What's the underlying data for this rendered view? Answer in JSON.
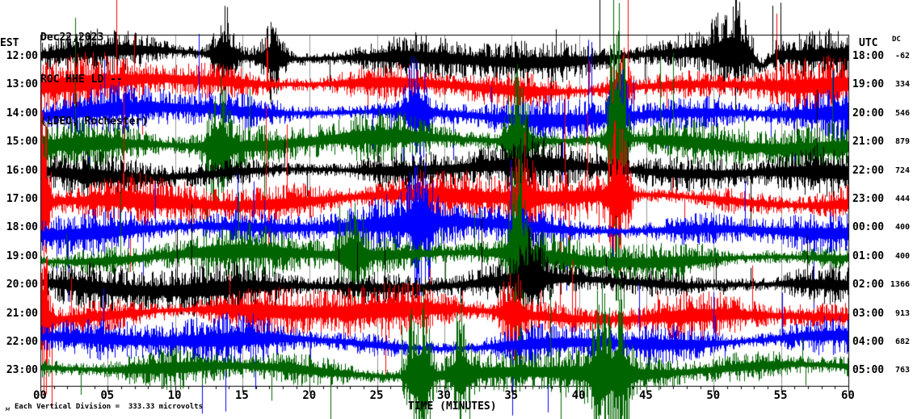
{
  "header": {
    "date": "Dec22,2023",
    "station_line": "ROC HHE LD --",
    "affiliation_line": "(LDEO, Rochester)"
  },
  "left_axis": {
    "label": "EST"
  },
  "right_axis": {
    "label": "UTC",
    "dc_label": "DC"
  },
  "x_axis": {
    "label": "TIME (MINUTES)",
    "tick_labels": [
      "00",
      "05",
      "10",
      "15",
      "20",
      "25",
      "30",
      "35",
      "40",
      "45",
      "50",
      "55",
      "60"
    ]
  },
  "footer": {
    "scale_note": "Each Vertical Division =  333.33 microvolts",
    "watermark": "м"
  },
  "chart_data": {
    "type": "line",
    "subtype": "helicorder-seismogram",
    "x_range_minutes": [
      0,
      60
    ],
    "minutes_total": 60,
    "vertical_division_microvolts": 333.33,
    "grid": {
      "vertical_major_every_minutes": 5,
      "minor_tick_every_minutes": 1,
      "color": "#999999"
    },
    "trace_color_cycle": [
      "#000000",
      "#ff0000",
      "#0000ff",
      "#006400"
    ],
    "rows": [
      {
        "est": "12:00",
        "utc": "18:00",
        "dc": -62,
        "color": "#000000",
        "seed": 101,
        "base": 13,
        "events": [
          {
            "m": 13.6,
            "a": 34
          },
          {
            "m": 17.2,
            "a": 26
          },
          {
            "m": 51.3,
            "a": 28,
            "w": 0.9
          },
          {
            "m": 53.6,
            "a": -8,
            "o": 14,
            "w": 0.5
          }
        ]
      },
      {
        "est": "13:00",
        "utc": "19:00",
        "dc": 334,
        "color": "#ff0000",
        "seed": 202,
        "base": 13,
        "events": [
          {
            "m": 43,
            "a": 28
          }
        ]
      },
      {
        "est": "14:00",
        "utc": "20:00",
        "dc": 546,
        "color": "#0000ff",
        "seed": 303,
        "base": 13,
        "events": [
          {
            "m": 27.9,
            "a": 38
          },
          {
            "m": 43,
            "a": 28
          }
        ]
      },
      {
        "est": "15:00",
        "utc": "21:00",
        "dc": 879,
        "color": "#006400",
        "seed": 404,
        "base": 14,
        "events": [
          {
            "m": 13.2,
            "a": 42
          },
          {
            "m": 35.4,
            "a": 50
          },
          {
            "m": 42.8,
            "a": 145,
            "w": 0.4
          }
        ]
      },
      {
        "est": "16:00",
        "utc": "22:00",
        "dc": 724,
        "color": "#000000",
        "seed": 505,
        "base": 13,
        "events": []
      },
      {
        "est": "17:00",
        "utc": "23:00",
        "dc": 444,
        "color": "#ff0000",
        "seed": 606,
        "base": 14,
        "events": [
          {
            "m": 0.2,
            "a": 95,
            "w": 0.3
          },
          {
            "m": 35.8,
            "a": 32
          },
          {
            "m": 42.9,
            "a": 55
          }
        ]
      },
      {
        "est": "18:00",
        "utc": "00:00",
        "dc": 400,
        "color": "#0000ff",
        "seed": 707,
        "base": 13,
        "events": [
          {
            "m": 28.2,
            "a": 45
          }
        ]
      },
      {
        "est": "19:00",
        "utc": "01:00",
        "dc": 400,
        "color": "#006400",
        "seed": 808,
        "base": 13,
        "events": [
          {
            "m": 23.2,
            "a": 38
          },
          {
            "m": 35.4,
            "a": 105,
            "w": 0.35
          }
        ]
      },
      {
        "est": "20:00",
        "utc": "02:00",
        "dc": 1366,
        "color": "#000000",
        "seed": 909,
        "base": 13,
        "events": [
          {
            "m": 36.5,
            "a": 32
          }
        ]
      },
      {
        "est": "21:00",
        "utc": "03:00",
        "dc": 913,
        "color": "#ff0000",
        "seed": 1010,
        "base": 14,
        "events": [
          {
            "m": 0.2,
            "a": 60,
            "w": 0.3
          },
          {
            "m": 35,
            "a": 28
          }
        ]
      },
      {
        "est": "22:00",
        "utc": "04:00",
        "dc": 682,
        "color": "#0000ff",
        "seed": 1111,
        "base": 13,
        "events": []
      },
      {
        "est": "23:00",
        "utc": "05:00",
        "dc": 763,
        "color": "#006400",
        "seed": 1212,
        "base": 13,
        "events": [
          {
            "m": 27.7,
            "a": 48,
            "w": 0.4
          },
          {
            "m": 28.5,
            "a": 52,
            "w": 0.35
          },
          {
            "m": 31.2,
            "a": 42,
            "w": 0.4
          },
          {
            "m": 41.7,
            "a": 52,
            "w": 0.5
          },
          {
            "m": 43.1,
            "a": 44,
            "w": 0.4
          }
        ]
      }
    ]
  }
}
